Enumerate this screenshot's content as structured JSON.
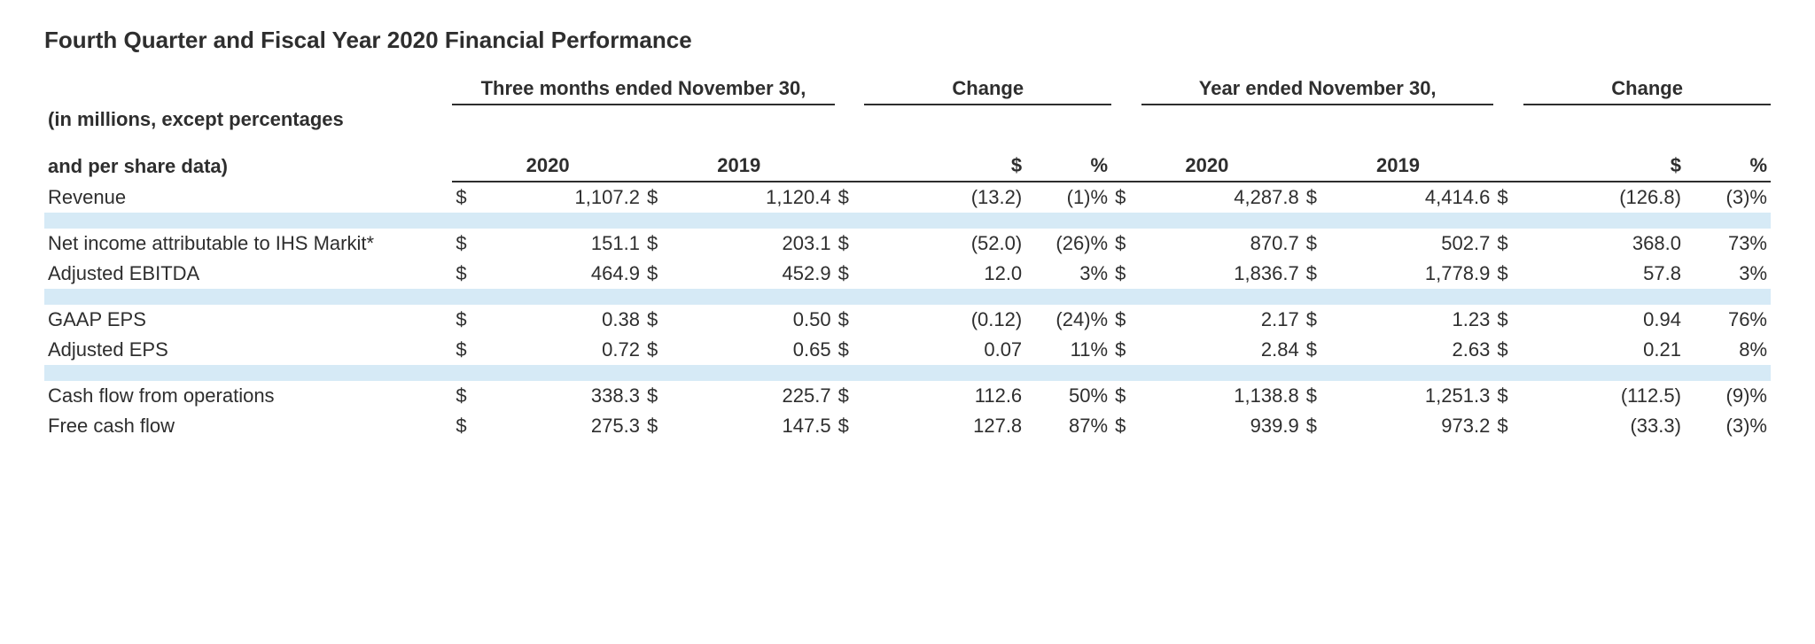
{
  "title": "Fourth Quarter and Fiscal Year 2020 Financial Performance",
  "subtitle_line1": "(in millions, except percentages",
  "subtitle_line2": "and per share data)",
  "group_headers": {
    "three_months": "Three months ended November 30,",
    "change1": "Change",
    "year": "Year ended November 30,",
    "change2": "Change"
  },
  "col_headers": {
    "y2020a": "2020",
    "y2019a": "2019",
    "dollar1": "$",
    "pct1": "%",
    "y2020b": "2020",
    "y2019b": "2019",
    "dollar2": "$",
    "pct2": "%"
  },
  "currency": "$",
  "rows": {
    "revenue": {
      "label": "Revenue",
      "q2020": "1,107.2",
      "q2019": "1,120.4",
      "qdollar": "(13.2)",
      "qpct": "(1)%",
      "y2020": "4,287.8",
      "y2019": "4,414.6",
      "ydollar": "(126.8)",
      "ypct": "(3)%"
    },
    "net_income": {
      "label": "Net income attributable to IHS Markit*",
      "q2020": "151.1",
      "q2019": "203.1",
      "qdollar": "(52.0)",
      "qpct": "(26)%",
      "y2020": "870.7",
      "y2019": "502.7",
      "ydollar": "368.0",
      "ypct": "73%"
    },
    "adj_ebitda": {
      "label": "Adjusted EBITDA",
      "q2020": "464.9",
      "q2019": "452.9",
      "qdollar": "12.0",
      "qpct": "3%",
      "y2020": "1,836.7",
      "y2019": "1,778.9",
      "ydollar": "57.8",
      "ypct": "3%"
    },
    "gaap_eps": {
      "label": "GAAP EPS",
      "q2020": "0.38",
      "q2019": "0.50",
      "qdollar": "(0.12)",
      "qpct": "(24)%",
      "y2020": "2.17",
      "y2019": "1.23",
      "ydollar": "0.94",
      "ypct": "76%"
    },
    "adj_eps": {
      "label": "Adjusted EPS",
      "q2020": "0.72",
      "q2019": "0.65",
      "qdollar": "0.07",
      "qpct": "11%",
      "y2020": "2.84",
      "y2019": "2.63",
      "ydollar": "0.21",
      "ypct": "8%"
    },
    "cash_ops": {
      "label": "Cash flow from operations",
      "q2020": "338.3",
      "q2019": "225.7",
      "qdollar": "112.6",
      "qpct": "50%",
      "y2020": "1,138.8",
      "y2019": "1,251.3",
      "ydollar": "(112.5)",
      "ypct": "(9)%"
    },
    "fcf": {
      "label": "Free cash flow",
      "q2020": "275.3",
      "q2019": "147.5",
      "qdollar": "127.8",
      "qpct": "87%",
      "y2020": "939.9",
      "y2019": "973.2",
      "ydollar": "(33.3)",
      "ypct": "(3)%"
    }
  },
  "style": {
    "highlight_row_color": "#d6eaf6",
    "text_color": "#2e2e2e",
    "border_color": "#2e2e2e",
    "title_fontsize": 26,
    "body_fontsize": 22
  }
}
